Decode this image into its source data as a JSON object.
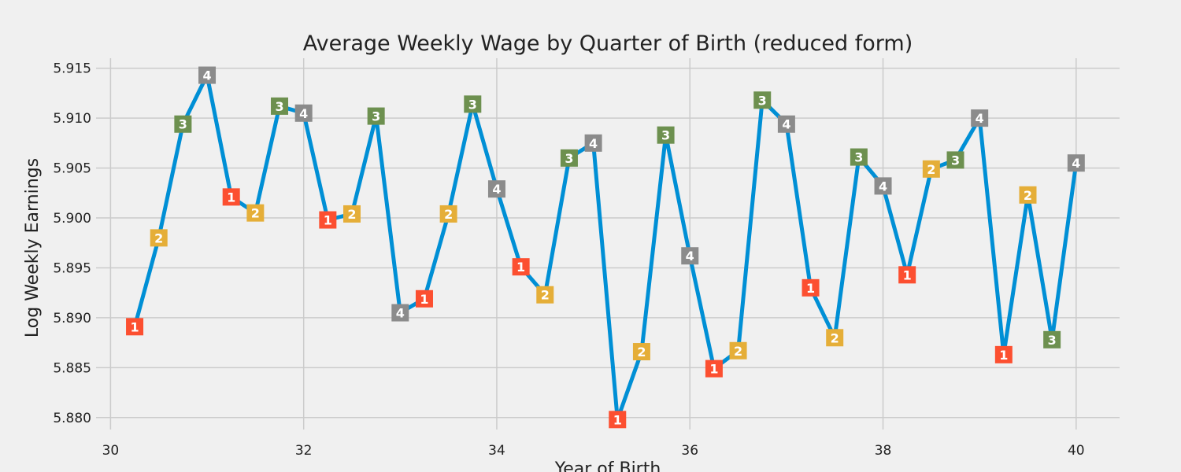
{
  "chart_data": {
    "type": "line",
    "title": "Average Weekly Wage by Quarter of Birth (reduced form)",
    "xlabel": "Year of Birth",
    "ylabel": "Log Weekly Earnings",
    "xlim": [
      29.85,
      40.45
    ],
    "ylim": [
      5.8788,
      5.916
    ],
    "xticks": [
      30,
      32,
      34,
      36,
      38,
      40
    ],
    "yticks": [
      5.88,
      5.885,
      5.89,
      5.895,
      5.9,
      5.905,
      5.91,
      5.915
    ],
    "grid": true,
    "quarter_colors": {
      "1": "#fc4f30",
      "2": "#e5ae38",
      "3": "#6d904f",
      "4": "#8b8b8b"
    },
    "line_color": "#008fd5",
    "points": [
      {
        "x": 30.25,
        "y": 5.8891,
        "q": "1"
      },
      {
        "x": 30.5,
        "y": 5.898,
        "q": "2"
      },
      {
        "x": 30.75,
        "y": 5.9094,
        "q": "3"
      },
      {
        "x": 31.0,
        "y": 5.9143,
        "q": "4"
      },
      {
        "x": 31.25,
        "y": 5.9021,
        "q": "1"
      },
      {
        "x": 31.5,
        "y": 5.9005,
        "q": "2"
      },
      {
        "x": 31.75,
        "y": 5.9112,
        "q": "3"
      },
      {
        "x": 32.0,
        "y": 5.9105,
        "q": "4"
      },
      {
        "x": 32.25,
        "y": 5.8998,
        "q": "1"
      },
      {
        "x": 32.5,
        "y": 5.9004,
        "q": "2"
      },
      {
        "x": 32.75,
        "y": 5.9102,
        "q": "3"
      },
      {
        "x": 33.0,
        "y": 5.8905,
        "q": "4"
      },
      {
        "x": 33.25,
        "y": 5.8919,
        "q": "1"
      },
      {
        "x": 33.5,
        "y": 5.9004,
        "q": "2"
      },
      {
        "x": 33.75,
        "y": 5.9114,
        "q": "3"
      },
      {
        "x": 34.0,
        "y": 5.9029,
        "q": "4"
      },
      {
        "x": 34.25,
        "y": 5.8951,
        "q": "1"
      },
      {
        "x": 34.5,
        "y": 5.8923,
        "q": "2"
      },
      {
        "x": 34.75,
        "y": 5.906,
        "q": "3"
      },
      {
        "x": 35.0,
        "y": 5.9075,
        "q": "4"
      },
      {
        "x": 35.25,
        "y": 5.8798,
        "q": "1"
      },
      {
        "x": 35.5,
        "y": 5.8866,
        "q": "2"
      },
      {
        "x": 35.75,
        "y": 5.9083,
        "q": "3"
      },
      {
        "x": 36.0,
        "y": 5.8962,
        "q": "4"
      },
      {
        "x": 36.25,
        "y": 5.8849,
        "q": "1"
      },
      {
        "x": 36.5,
        "y": 5.8867,
        "q": "2"
      },
      {
        "x": 36.75,
        "y": 5.9118,
        "q": "3"
      },
      {
        "x": 37.0,
        "y": 5.9094,
        "q": "4"
      },
      {
        "x": 37.25,
        "y": 5.893,
        "q": "1"
      },
      {
        "x": 37.5,
        "y": 5.888,
        "q": "2"
      },
      {
        "x": 37.75,
        "y": 5.9061,
        "q": "3"
      },
      {
        "x": 38.0,
        "y": 5.9032,
        "q": "4"
      },
      {
        "x": 38.25,
        "y": 5.8943,
        "q": "1"
      },
      {
        "x": 38.5,
        "y": 5.9049,
        "q": "2"
      },
      {
        "x": 38.75,
        "y": 5.9058,
        "q": "3"
      },
      {
        "x": 39.0,
        "y": 5.91,
        "q": "4"
      },
      {
        "x": 39.25,
        "y": 5.8863,
        "q": "1"
      },
      {
        "x": 39.5,
        "y": 5.9023,
        "q": "2"
      },
      {
        "x": 39.75,
        "y": 5.8878,
        "q": "3"
      },
      {
        "x": 40.0,
        "y": 5.9055,
        "q": "4"
      }
    ]
  }
}
